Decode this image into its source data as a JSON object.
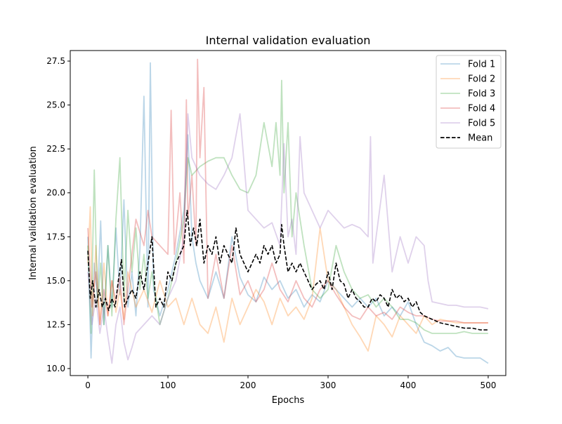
{
  "chart_data": {
    "type": "line",
    "title": "Internal validation evaluation",
    "xlabel": "Epochs",
    "ylabel": "Internal validation evaluation",
    "xlim": [
      -22,
      522
    ],
    "ylim": [
      9.6,
      28.1
    ],
    "xticks": [
      0,
      100,
      200,
      300,
      400,
      500
    ],
    "yticks": [
      10.0,
      12.5,
      15.0,
      17.5,
      20.0,
      22.5,
      25.0,
      27.5
    ],
    "ytick_labels": [
      "10.0",
      "12.5",
      "15.0",
      "17.5",
      "20.0",
      "22.5",
      "25.0",
      "27.5"
    ],
    "grid": false,
    "legend_position": "top-right",
    "series": [
      {
        "name": "Fold 1",
        "color": "#1f77b4",
        "alpha": 0.3,
        "dash": "solid",
        "x": [
          0,
          4,
          8,
          12,
          16,
          20,
          25,
          30,
          35,
          40,
          45,
          50,
          55,
          60,
          65,
          70,
          75,
          78,
          82,
          90,
          100,
          110,
          120,
          125,
          130,
          135,
          140,
          150,
          160,
          170,
          180,
          190,
          200,
          210,
          220,
          230,
          240,
          250,
          260,
          270,
          280,
          290,
          300,
          310,
          320,
          330,
          340,
          350,
          360,
          370,
          380,
          390,
          400,
          410,
          420,
          430,
          440,
          450,
          460,
          470,
          480,
          490,
          500
        ],
        "y": [
          17.5,
          10.6,
          16.0,
          14.0,
          18.4,
          12.5,
          17.0,
          13.5,
          18.0,
          14.2,
          19.6,
          13.5,
          15.5,
          13.0,
          16.8,
          25.5,
          13.5,
          27.4,
          14.5,
          13.0,
          14.5,
          16.5,
          19.0,
          23.3,
          17.5,
          16.0,
          15.0,
          14.0,
          15.5,
          14.0,
          17.5,
          15.2,
          14.2,
          13.8,
          15.2,
          14.5,
          15.0,
          14.0,
          14.5,
          13.5,
          14.2,
          13.8,
          15.0,
          14.5,
          14.0,
          13.5,
          14.0,
          13.5,
          14.0,
          13.0,
          13.5,
          13.0,
          13.8,
          12.5,
          11.5,
          11.3,
          11.0,
          11.2,
          10.7,
          10.6,
          10.6,
          10.6,
          10.3
        ]
      },
      {
        "name": "Fold 2",
        "color": "#ff7f0e",
        "alpha": 0.3,
        "dash": "solid",
        "x": [
          0,
          3,
          6,
          10,
          15,
          20,
          25,
          30,
          35,
          40,
          45,
          50,
          60,
          70,
          80,
          90,
          100,
          110,
          120,
          130,
          140,
          150,
          160,
          170,
          180,
          190,
          200,
          210,
          220,
          230,
          240,
          250,
          260,
          270,
          280,
          290,
          300,
          310,
          320,
          330,
          340,
          350,
          360,
          370,
          380,
          390,
          400,
          410,
          420,
          430,
          440,
          450,
          460,
          470,
          480,
          490,
          500
        ],
        "y": [
          16.0,
          19.2,
          13.0,
          17.0,
          12.5,
          16.0,
          13.0,
          15.0,
          13.2,
          14.5,
          12.8,
          15.5,
          13.5,
          14.5,
          13.2,
          15.0,
          13.5,
          14.0,
          12.5,
          14.0,
          12.5,
          12.0,
          13.5,
          11.5,
          14.0,
          12.5,
          13.5,
          14.5,
          13.8,
          12.5,
          14.0,
          13.0,
          13.5,
          12.8,
          14.0,
          18.0,
          15.0,
          14.5,
          13.5,
          12.5,
          11.8,
          11.0,
          13.0,
          12.5,
          11.8,
          13.0,
          12.5,
          12.0,
          13.0,
          12.5,
          12.8,
          12.7,
          12.6,
          12.6,
          12.6,
          12.6,
          12.6
        ]
      },
      {
        "name": "Fold 3",
        "color": "#2ca02c",
        "alpha": 0.3,
        "dash": "solid",
        "x": [
          0,
          4,
          8,
          12,
          16,
          20,
          25,
          30,
          35,
          40,
          45,
          50,
          55,
          60,
          65,
          70,
          75,
          80,
          90,
          100,
          110,
          120,
          125,
          130,
          140,
          150,
          160,
          170,
          180,
          190,
          200,
          210,
          220,
          230,
          235,
          240,
          242,
          245,
          250,
          255,
          260,
          270,
          280,
          290,
          300,
          310,
          320,
          330,
          340,
          350,
          360,
          370,
          380,
          390,
          400,
          410,
          420,
          430,
          440,
          450,
          460,
          470,
          480,
          490,
          500
        ],
        "y": [
          17.0,
          12.0,
          21.3,
          13.5,
          16.0,
          12.5,
          17.0,
          13.0,
          18.5,
          22.0,
          14.0,
          19.0,
          15.5,
          18.0,
          14.5,
          16.5,
          14.0,
          15.5,
          12.5,
          14.0,
          16.0,
          18.5,
          22.0,
          21.0,
          21.5,
          21.8,
          22.0,
          22.0,
          21.0,
          20.2,
          20.0,
          21.0,
          24.0,
          21.5,
          24.0,
          21.0,
          26.4,
          20.0,
          24.0,
          17.5,
          20.0,
          17.0,
          14.5,
          14.0,
          14.5,
          17.0,
          15.5,
          14.5,
          14.0,
          14.2,
          13.5,
          14.0,
          13.5,
          12.8,
          12.8,
          12.6,
          12.2,
          12.0,
          12.0,
          12.0,
          12.0,
          12.1,
          12.0,
          12.0,
          12.0
        ]
      },
      {
        "name": "Fold 4",
        "color": "#d62728",
        "alpha": 0.3,
        "dash": "solid",
        "x": [
          0,
          5,
          10,
          15,
          20,
          25,
          30,
          35,
          40,
          45,
          50,
          60,
          70,
          75,
          80,
          90,
          100,
          104,
          108,
          115,
          120,
          123,
          125,
          130,
          135,
          137,
          140,
          145,
          150,
          160,
          170,
          180,
          190,
          200,
          210,
          220,
          230,
          240,
          250,
          260,
          270,
          280,
          290,
          300,
          310,
          320,
          330,
          340,
          350,
          360,
          370,
          380,
          390,
          400,
          410,
          420,
          430,
          440,
          450,
          460,
          470,
          480,
          490,
          500
        ],
        "y": [
          18.0,
          13.5,
          15.5,
          12.5,
          14.5,
          13.0,
          15.0,
          13.8,
          15.2,
          12.5,
          14.5,
          18.5,
          17.0,
          19.0,
          17.5,
          17.0,
          16.5,
          24.7,
          16.5,
          20.0,
          16.0,
          25.3,
          18.5,
          21.0,
          17.0,
          27.6,
          22.0,
          26.0,
          14.0,
          16.5,
          14.0,
          17.0,
          14.2,
          15.0,
          13.8,
          14.5,
          16.0,
          14.5,
          13.8,
          15.0,
          14.0,
          13.5,
          14.5,
          15.0,
          14.2,
          13.5,
          13.0,
          12.8,
          13.5,
          13.0,
          13.2,
          12.8,
          13.5,
          13.2,
          13.0,
          13.0,
          12.8,
          12.7,
          12.7,
          12.7,
          12.6,
          12.6,
          12.6,
          12.6
        ]
      },
      {
        "name": "Fold 5",
        "color": "#9467bd",
        "alpha": 0.3,
        "dash": "solid",
        "x": [
          0,
          5,
          10,
          15,
          20,
          25,
          30,
          35,
          40,
          45,
          50,
          55,
          60,
          70,
          80,
          90,
          100,
          110,
          120,
          125,
          130,
          140,
          150,
          160,
          170,
          180,
          190,
          200,
          210,
          220,
          230,
          240,
          245,
          250,
          255,
          260,
          265,
          270,
          280,
          290,
          300,
          310,
          320,
          330,
          340,
          350,
          353,
          356,
          360,
          370,
          380,
          390,
          400,
          410,
          420,
          425,
          430,
          440,
          450,
          460,
          470,
          480,
          490,
          500
        ],
        "y": [
          15.5,
          12.5,
          14.0,
          12.0,
          13.5,
          11.8,
          10.3,
          12.5,
          13.5,
          11.5,
          10.5,
          11.2,
          12.0,
          12.5,
          13.0,
          12.5,
          14.0,
          15.0,
          17.5,
          24.5,
          22.0,
          21.0,
          20.5,
          20.2,
          21.0,
          22.0,
          24.5,
          19.0,
          18.5,
          18.0,
          18.3,
          17.0,
          22.8,
          17.5,
          18.5,
          16.5,
          23.2,
          20.0,
          19.0,
          18.0,
          19.0,
          18.5,
          18.0,
          18.2,
          18.0,
          17.5,
          23.2,
          16.0,
          17.5,
          21.0,
          15.5,
          17.5,
          16.0,
          17.5,
          17.0,
          15.0,
          13.8,
          13.7,
          13.6,
          13.6,
          13.5,
          13.5,
          13.5,
          13.4
        ]
      },
      {
        "name": "Mean",
        "color": "#000000",
        "alpha": 1.0,
        "dash": "dashed",
        "x": [
          0,
          3,
          6,
          10,
          14,
          18,
          22,
          26,
          30,
          34,
          38,
          42,
          46,
          50,
          55,
          60,
          65,
          70,
          75,
          80,
          85,
          90,
          95,
          100,
          105,
          110,
          115,
          120,
          124,
          128,
          132,
          136,
          140,
          145,
          150,
          155,
          160,
          165,
          170,
          175,
          180,
          185,
          190,
          195,
          200,
          205,
          210,
          215,
          220,
          225,
          230,
          235,
          240,
          242,
          245,
          250,
          255,
          260,
          265,
          270,
          275,
          280,
          285,
          290,
          295,
          300,
          305,
          310,
          315,
          320,
          325,
          330,
          335,
          340,
          345,
          350,
          355,
          360,
          365,
          370,
          375,
          380,
          385,
          390,
          395,
          400,
          405,
          410,
          415,
          420,
          430,
          440,
          450,
          460,
          470,
          480,
          490,
          500
        ],
        "y": [
          16.7,
          14.0,
          15.0,
          13.5,
          14.5,
          13.5,
          14.0,
          13.3,
          14.0,
          13.5,
          15.0,
          16.2,
          13.5,
          14.0,
          14.5,
          14.0,
          15.5,
          14.5,
          16.0,
          17.5,
          13.5,
          14.0,
          13.5,
          15.5,
          15.0,
          16.0,
          16.5,
          17.0,
          19.0,
          17.0,
          18.0,
          17.0,
          18.5,
          16.0,
          17.0,
          16.5,
          17.5,
          16.0,
          17.0,
          16.5,
          16.0,
          18.0,
          16.5,
          16.0,
          15.5,
          16.0,
          16.5,
          16.0,
          17.0,
          16.5,
          17.0,
          16.0,
          16.5,
          18.2,
          17.0,
          15.5,
          16.0,
          15.5,
          16.0,
          15.5,
          15.0,
          14.5,
          14.8,
          15.0,
          14.5,
          15.5,
          14.5,
          16.0,
          15.0,
          14.8,
          14.0,
          14.5,
          14.0,
          13.8,
          13.5,
          13.5,
          14.0,
          13.8,
          14.2,
          14.0,
          13.5,
          14.5,
          14.0,
          14.2,
          13.8,
          14.0,
          13.5,
          13.8,
          13.2,
          13.0,
          12.8,
          12.6,
          12.5,
          12.4,
          12.3,
          12.3,
          12.2,
          12.2
        ]
      }
    ]
  }
}
